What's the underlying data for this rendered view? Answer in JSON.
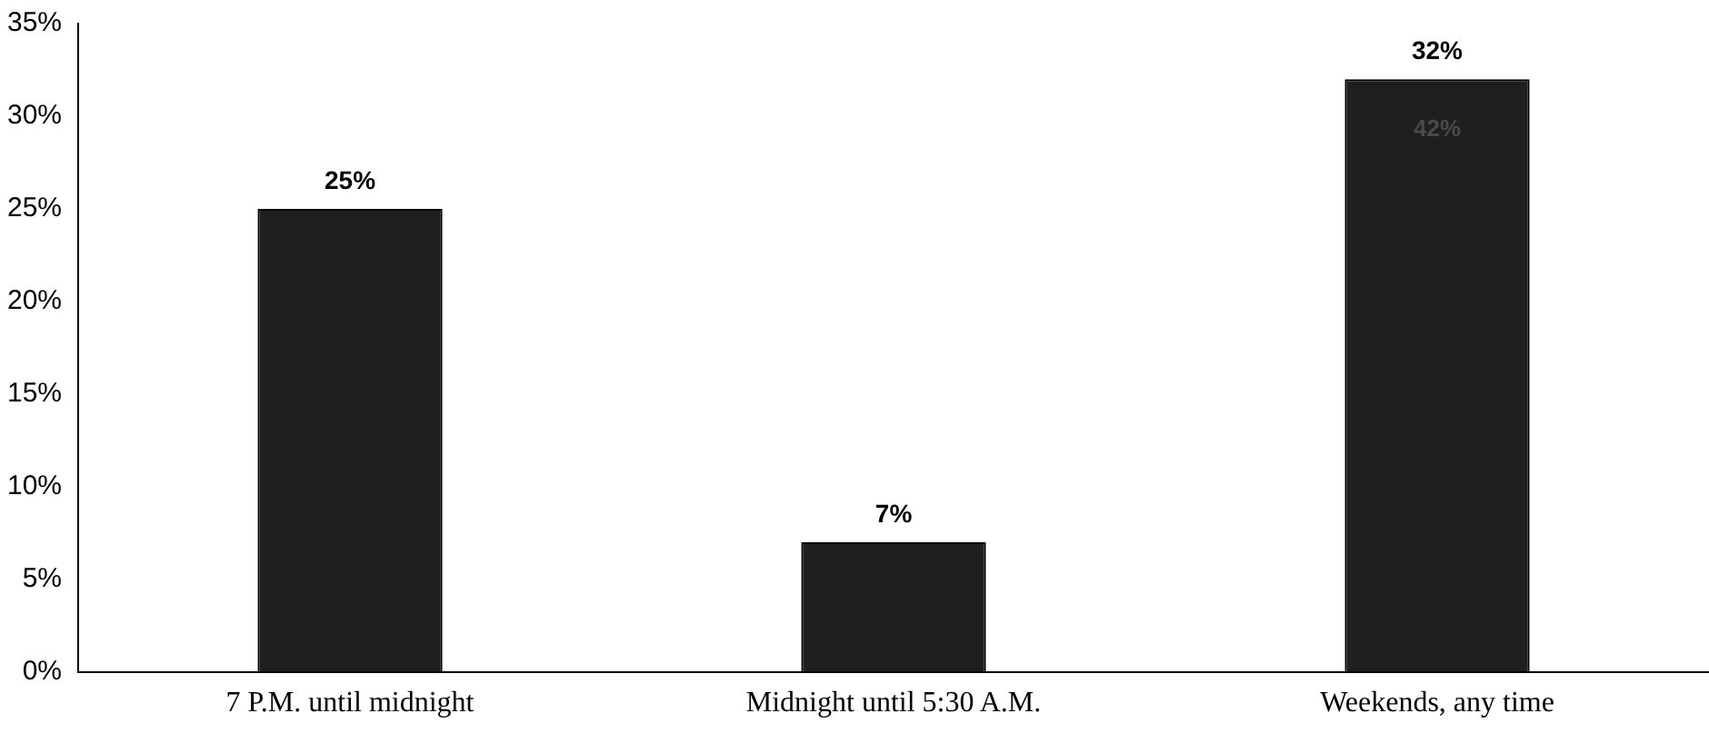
{
  "chart_data": {
    "type": "bar",
    "categories": [
      "7 P.M. until midnight",
      "Midnight until 5:30 A.M.",
      "Weekends, any time"
    ],
    "values": [
      25,
      7,
      32
    ],
    "color": "#1f1f1f",
    "value_labels": [
      "25%",
      "7%",
      "32%"
    ],
    "ylim": [
      0,
      35
    ],
    "yticks": [
      {
        "value": 0,
        "label": "0%"
      },
      {
        "value": 5,
        "label": "5%"
      },
      {
        "value": 10,
        "label": "10%"
      },
      {
        "value": 15,
        "label": "15%"
      },
      {
        "value": 20,
        "label": "20%"
      },
      {
        "value": 25,
        "label": "25%"
      },
      {
        "value": 30,
        "label": "30%"
      },
      {
        "value": 35,
        "label": "35%"
      }
    ],
    "annotations": [
      "42%"
    ],
    "grid": false,
    "legend": false
  }
}
